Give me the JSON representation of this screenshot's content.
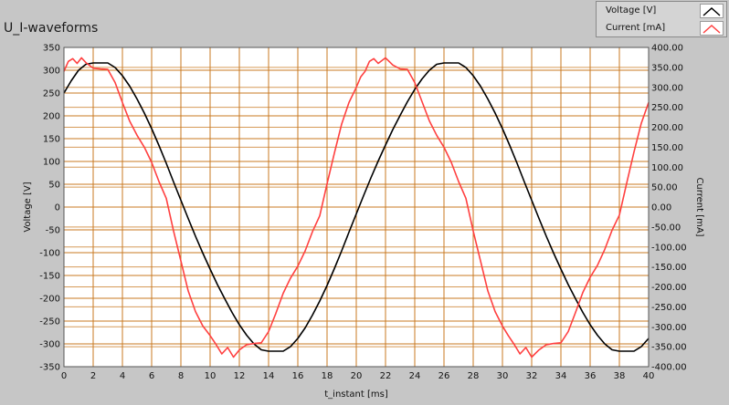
{
  "chart_data": {
    "type": "line",
    "title": "U_I-waveforms",
    "xlabel": "t_instant [ms]",
    "ylabel_left": "Voltage [V]",
    "ylabel_right": "Current [mA]",
    "xlim": [
      0,
      40
    ],
    "ylim_left": [
      -350,
      350
    ],
    "ylim_right": [
      -400,
      400
    ],
    "x_ticks": [
      "0",
      "2",
      "4",
      "6",
      "8",
      "10",
      "12",
      "14",
      "16",
      "18",
      "20",
      "22",
      "24",
      "26",
      "28",
      "30",
      "32",
      "34",
      "36",
      "38",
      "40"
    ],
    "y_left_ticks": [
      "350",
      "300",
      "250",
      "200",
      "150",
      "100",
      "50",
      "0",
      "-50",
      "-100",
      "-150",
      "-200",
      "-250",
      "-300",
      "-350"
    ],
    "y_right_ticks": [
      "400.00",
      "350.00",
      "300.00",
      "250.00",
      "200.00",
      "150.00",
      "100.00",
      "50.00",
      "0.00",
      "-50.00",
      "-100.00",
      "-150.00",
      "-200.00",
      "-250.00",
      "-300.00",
      "-350.00",
      "-400.00"
    ],
    "grid": true,
    "legend_position": "top-right",
    "series": [
      {
        "name": "Voltage [V]",
        "axis": "left",
        "color": "#000000",
        "x": [
          0,
          0.5,
          1,
          1.5,
          2,
          2.5,
          3,
          3.5,
          4,
          4.5,
          5,
          5.5,
          6,
          6.5,
          7,
          7.5,
          8,
          8.5,
          9,
          9.5,
          10,
          10.5,
          11,
          11.5,
          12,
          12.5,
          13,
          13.5,
          14,
          14.5,
          15,
          15.5,
          16,
          16.5,
          17,
          17.5,
          18,
          18.5,
          19,
          19.5,
          20,
          20.5,
          21,
          21.5,
          22,
          22.5,
          23,
          23.5,
          24,
          24.5,
          25,
          25.5,
          26,
          26.5,
          27,
          27.5,
          28,
          28.5,
          29,
          29.5,
          30,
          30.5,
          31,
          31.5,
          32,
          32.5,
          33,
          33.5,
          34,
          34.5,
          35,
          35.5,
          36,
          36.5,
          37,
          37.5,
          38,
          38.5,
          39,
          39.5,
          40
        ],
        "values": [
          250,
          277,
          300,
          313,
          316,
          316,
          316,
          306,
          288,
          265,
          237,
          206,
          172,
          135,
          96,
          55,
          15,
          -25,
          -64,
          -101,
          -136,
          -170,
          -201,
          -231,
          -258,
          -281,
          -300,
          -313,
          -316,
          -316,
          -316,
          -306,
          -288,
          -265,
          -237,
          -206,
          -172,
          -135,
          -96,
          -55,
          -15,
          25,
          64,
          101,
          136,
          170,
          201,
          231,
          258,
          281,
          300,
          313,
          316,
          316,
          316,
          306,
          288,
          265,
          237,
          206,
          172,
          135,
          96,
          55,
          15,
          -25,
          -64,
          -101,
          -136,
          -170,
          -201,
          -231,
          -258,
          -281,
          -300,
          -313,
          -316,
          -316,
          -316,
          -306,
          -288
        ]
      },
      {
        "name": "Current [mA]",
        "axis": "right",
        "color": "#ff4040",
        "x": [
          0,
          0.3,
          0.6,
          0.9,
          1.2,
          1.5,
          2,
          2.5,
          3,
          3.5,
          4,
          4.5,
          5,
          5.5,
          6,
          6.5,
          7,
          7.5,
          8,
          8.5,
          9,
          9.5,
          10,
          10.4,
          10.8,
          11.2,
          11.6,
          12,
          12.5,
          13,
          13.5,
          14,
          14.5,
          15,
          15.5,
          16,
          16.5,
          17,
          17.5,
          18,
          18.5,
          19,
          19.5,
          20,
          20.3,
          20.6,
          20.9,
          21.2,
          21.5,
          22,
          22.5,
          23,
          23.5,
          24,
          24.5,
          25,
          25.5,
          26,
          26.5,
          27,
          27.5,
          28,
          28.5,
          29,
          29.5,
          30,
          30.4,
          30.8,
          31.2,
          31.6,
          32,
          32.5,
          33,
          33.5,
          34,
          34.5,
          35,
          35.5,
          36,
          36.5,
          37,
          37.5,
          38,
          38.5,
          39,
          39.5,
          40
        ],
        "values": [
          340,
          365,
          372,
          360,
          374,
          362,
          348,
          346,
          345,
          312,
          262,
          215,
          180,
          150,
          112,
          64,
          22,
          -60,
          -135,
          -210,
          -262,
          -298,
          -322,
          -344,
          -368,
          -352,
          -376,
          -358,
          -345,
          -342,
          -340,
          -312,
          -266,
          -216,
          -178,
          -148,
          -110,
          -62,
          -22,
          58,
          135,
          208,
          262,
          300,
          326,
          340,
          365,
          372,
          360,
          374,
          356,
          346,
          345,
          312,
          264,
          216,
          180,
          150,
          112,
          64,
          22,
          -60,
          -135,
          -210,
          -262,
          -298,
          -322,
          -344,
          -368,
          -352,
          -376,
          -358,
          -345,
          -342,
          -340,
          -312,
          -264,
          -214,
          -176,
          -146,
          -106,
          -58,
          -20,
          60,
          138,
          210,
          262
        ]
      }
    ]
  }
}
